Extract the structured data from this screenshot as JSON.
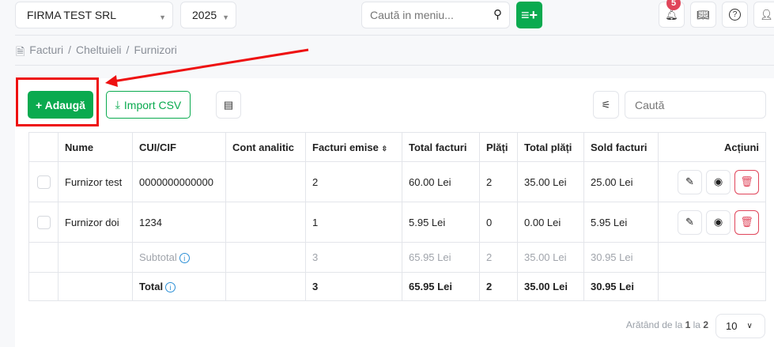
{
  "header": {
    "company": "FIRMA TEST SRL",
    "year": "2025",
    "menu_search_placeholder": "Caută in meniu...",
    "notification_count": "5"
  },
  "breadcrumb": [
    "Facturi",
    "Cheltuieli",
    "Furnizori"
  ],
  "toolbar": {
    "add_label": "+ Adaugă",
    "import_label": "Import CSV",
    "search_placeholder": "Caută"
  },
  "table": {
    "columns": [
      "Nume",
      "CUI/CIF",
      "Cont analitic",
      "Facturi emise",
      "Total facturi",
      "Plăți",
      "Total plăți",
      "Sold facturi",
      "Acțiuni"
    ],
    "rows": [
      {
        "nume": "Furnizor test",
        "cui": "0000000000000",
        "cont": "",
        "facturi": "2",
        "total": "60.00 Lei",
        "plati": "2",
        "total_plati": "35.00 Lei",
        "sold": "25.00 Lei"
      },
      {
        "nume": "Furnizor doi",
        "cui": "1234",
        "cont": "",
        "facturi": "1",
        "total": "5.95 Lei",
        "plati": "0",
        "total_plati": "0.00 Lei",
        "sold": "5.95 Lei"
      }
    ],
    "subtotal": {
      "label": "Subtotal",
      "facturi": "3",
      "total": "65.95 Lei",
      "plati": "2",
      "total_plati": "35.00 Lei",
      "sold": "30.95 Lei"
    },
    "total": {
      "label": "Total",
      "facturi": "3",
      "total": "65.95 Lei",
      "plati": "2",
      "total_plati": "35.00 Lei",
      "sold": "30.95 Lei"
    }
  },
  "pagination": {
    "prefix": "Arătând de la",
    "from": "1",
    "mid": "la",
    "to": "2",
    "page_size": "10"
  },
  "colors": {
    "accent": "#0aaa4f",
    "danger": "#e0455a",
    "annotation": "#ee1111"
  }
}
